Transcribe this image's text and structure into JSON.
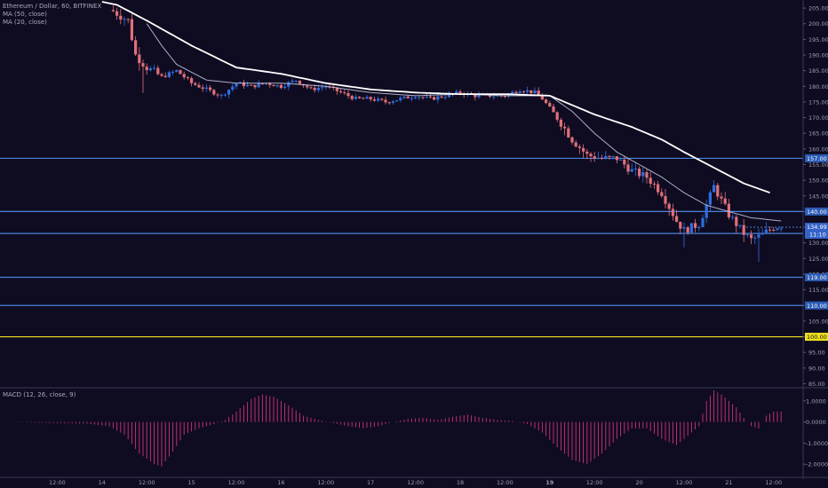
{
  "header": {
    "symbol": "Ethereum / Dollar, 60, BITFINEX",
    "ma50": "MA (50, close)",
    "ma20": "MA (20, close)"
  },
  "macd_label": "MACD (12, 26, close, 9)",
  "colors": {
    "background": "#0f0c22",
    "candle_up": "#2f6fe0",
    "candle_down": "#e0707a",
    "ma50": "#ffffff",
    "ma20": "#c8cce8",
    "level_line": "#4a82d8",
    "level_100": "#f0e020",
    "macd_hist": "#d0327a",
    "current_tag": "#3563c8"
  },
  "chart_data": [
    {
      "type": "candlestick",
      "title": "Ethereum / Dollar, 60, BITFINEX",
      "y_ticks": [
        85,
        90,
        95,
        100,
        105,
        110,
        115,
        120,
        125,
        130,
        135,
        140,
        145,
        150,
        155,
        160,
        165,
        170,
        175,
        180,
        185,
        190,
        195,
        200,
        205
      ],
      "ylim": [
        84,
        207
      ],
      "x_ticks": [
        "12:00",
        "14",
        "12:00",
        "15",
        "12:00",
        "16",
        "12:00",
        "17",
        "12:00",
        "18",
        "12:00",
        "19",
        "12:00",
        "20",
        "12:00",
        "21",
        "12:00"
      ],
      "x_tick_hours": [
        12,
        24,
        36,
        48,
        60,
        72,
        84,
        96,
        108,
        120,
        132,
        144,
        156,
        168,
        180,
        192,
        204
      ],
      "levels": [
        {
          "price": 157,
          "label": "157.00",
          "color": "#4a82d8"
        },
        {
          "price": 140,
          "label": "140.00",
          "color": "#4a82d8"
        },
        {
          "price": 133,
          "label": "133.00",
          "color": "#4a82d8"
        },
        {
          "price": 119,
          "label": "119.00",
          "color": "#4a82d8"
        },
        {
          "price": 110,
          "label": "110.00",
          "color": "#4a82d8"
        },
        {
          "price": 100,
          "label": "100.00",
          "color": "#f0e020"
        }
      ],
      "current_price": {
        "price": 134.99,
        "label": "134.99",
        "countdown": "11:10"
      },
      "anchors": [
        [
          0,
          207
        ],
        [
          24,
          205
        ],
        [
          27,
          204
        ],
        [
          31,
          201
        ],
        [
          33,
          190
        ],
        [
          36,
          186
        ],
        [
          40,
          183
        ],
        [
          44,
          185
        ],
        [
          48,
          181
        ],
        [
          52,
          179
        ],
        [
          56,
          177
        ],
        [
          60,
          181
        ],
        [
          64,
          180
        ],
        [
          68,
          181
        ],
        [
          72,
          180
        ],
        [
          76,
          182
        ],
        [
          80,
          179
        ],
        [
          84,
          180
        ],
        [
          88,
          178
        ],
        [
          92,
          176
        ],
        [
          96,
          176
        ],
        [
          100,
          175
        ],
        [
          104,
          176
        ],
        [
          108,
          177
        ],
        [
          112,
          176
        ],
        [
          116,
          177
        ],
        [
          120,
          178
        ],
        [
          124,
          177
        ],
        [
          128,
          177
        ],
        [
          132,
          177
        ],
        [
          136,
          179
        ],
        [
          140,
          178
        ],
        [
          142,
          176
        ],
        [
          146,
          170
        ],
        [
          150,
          163
        ],
        [
          154,
          158
        ],
        [
          158,
          157
        ],
        [
          162,
          157
        ],
        [
          166,
          153
        ],
        [
          170,
          151
        ],
        [
          174,
          146
        ],
        [
          178,
          137
        ],
        [
          180,
          134
        ],
        [
          184,
          136
        ],
        [
          188,
          148
        ],
        [
          192,
          139
        ],
        [
          196,
          133
        ],
        [
          198,
          131
        ],
        [
          200,
          132
        ],
        [
          204,
          135
        ],
        [
          206,
          135.5
        ]
      ],
      "ma50_anchors": [
        [
          24,
          207
        ],
        [
          28,
          206
        ],
        [
          36,
          201
        ],
        [
          48,
          193
        ],
        [
          60,
          186
        ],
        [
          72,
          184
        ],
        [
          84,
          181
        ],
        [
          96,
          179
        ],
        [
          108,
          178
        ],
        [
          120,
          177.5
        ],
        [
          132,
          177.5
        ],
        [
          144,
          177
        ],
        [
          150,
          174
        ],
        [
          156,
          171
        ],
        [
          166,
          167
        ],
        [
          174,
          163
        ],
        [
          180,
          159
        ],
        [
          188,
          154
        ],
        [
          196,
          149
        ],
        [
          203,
          146
        ]
      ],
      "ma20_anchors": [
        [
          36,
          200
        ],
        [
          40,
          193
        ],
        [
          44,
          187
        ],
        [
          52,
          182
        ],
        [
          60,
          181
        ],
        [
          72,
          181
        ],
        [
          84,
          180
        ],
        [
          96,
          178
        ],
        [
          108,
          177
        ],
        [
          120,
          177.5
        ],
        [
          132,
          177
        ],
        [
          144,
          177
        ],
        [
          150,
          172
        ],
        [
          156,
          165
        ],
        [
          162,
          159
        ],
        [
          168,
          155
        ],
        [
          174,
          151
        ],
        [
          180,
          146
        ],
        [
          186,
          142
        ],
        [
          192,
          140
        ],
        [
          198,
          138
        ],
        [
          206,
          137
        ]
      ]
    },
    {
      "type": "bar",
      "title": "MACD (12, 26, close, 9)",
      "y_ticks": [
        -2,
        -1,
        0,
        1
      ],
      "y_tick_labels": [
        "-2.0000",
        "-1.0000",
        "0.0000",
        "1.0000"
      ],
      "ylim": [
        -2.5,
        1.5
      ],
      "hist_anchors": [
        [
          0,
          0
        ],
        [
          10,
          -0.05
        ],
        [
          20,
          -0.08
        ],
        [
          26,
          -0.2
        ],
        [
          30,
          -0.6
        ],
        [
          34,
          -1.5
        ],
        [
          38,
          -2.0
        ],
        [
          40,
          -2.1
        ],
        [
          43,
          -1.4
        ],
        [
          46,
          -0.6
        ],
        [
          50,
          -0.3
        ],
        [
          54,
          -0.1
        ],
        [
          57,
          0.1
        ],
        [
          60,
          0.5
        ],
        [
          64,
          1.1
        ],
        [
          67,
          1.3
        ],
        [
          70,
          1.2
        ],
        [
          74,
          0.8
        ],
        [
          78,
          0.3
        ],
        [
          82,
          0.1
        ],
        [
          86,
          -0.05
        ],
        [
          90,
          -0.2
        ],
        [
          94,
          -0.3
        ],
        [
          98,
          -0.2
        ],
        [
          102,
          0
        ],
        [
          106,
          0.15
        ],
        [
          110,
          0.2
        ],
        [
          114,
          0.1
        ],
        [
          118,
          0.25
        ],
        [
          122,
          0.35
        ],
        [
          126,
          0.2
        ],
        [
          130,
          0.1
        ],
        [
          134,
          0.05
        ],
        [
          138,
          -0.1
        ],
        [
          142,
          -0.5
        ],
        [
          146,
          -1.2
        ],
        [
          150,
          -1.8
        ],
        [
          154,
          -2.0
        ],
        [
          158,
          -1.5
        ],
        [
          162,
          -0.8
        ],
        [
          166,
          -0.3
        ],
        [
          170,
          -0.3
        ],
        [
          174,
          -0.8
        ],
        [
          178,
          -1.1
        ],
        [
          180,
          -0.8
        ],
        [
          184,
          -0.2
        ],
        [
          186,
          1.0
        ],
        [
          188,
          1.5
        ],
        [
          190,
          1.3
        ],
        [
          194,
          0.7
        ],
        [
          196,
          0.2
        ],
        [
          198,
          -0.2
        ],
        [
          200,
          -0.3
        ],
        [
          202,
          0.3
        ],
        [
          204,
          0.5
        ],
        [
          206,
          0.5
        ]
      ]
    }
  ]
}
